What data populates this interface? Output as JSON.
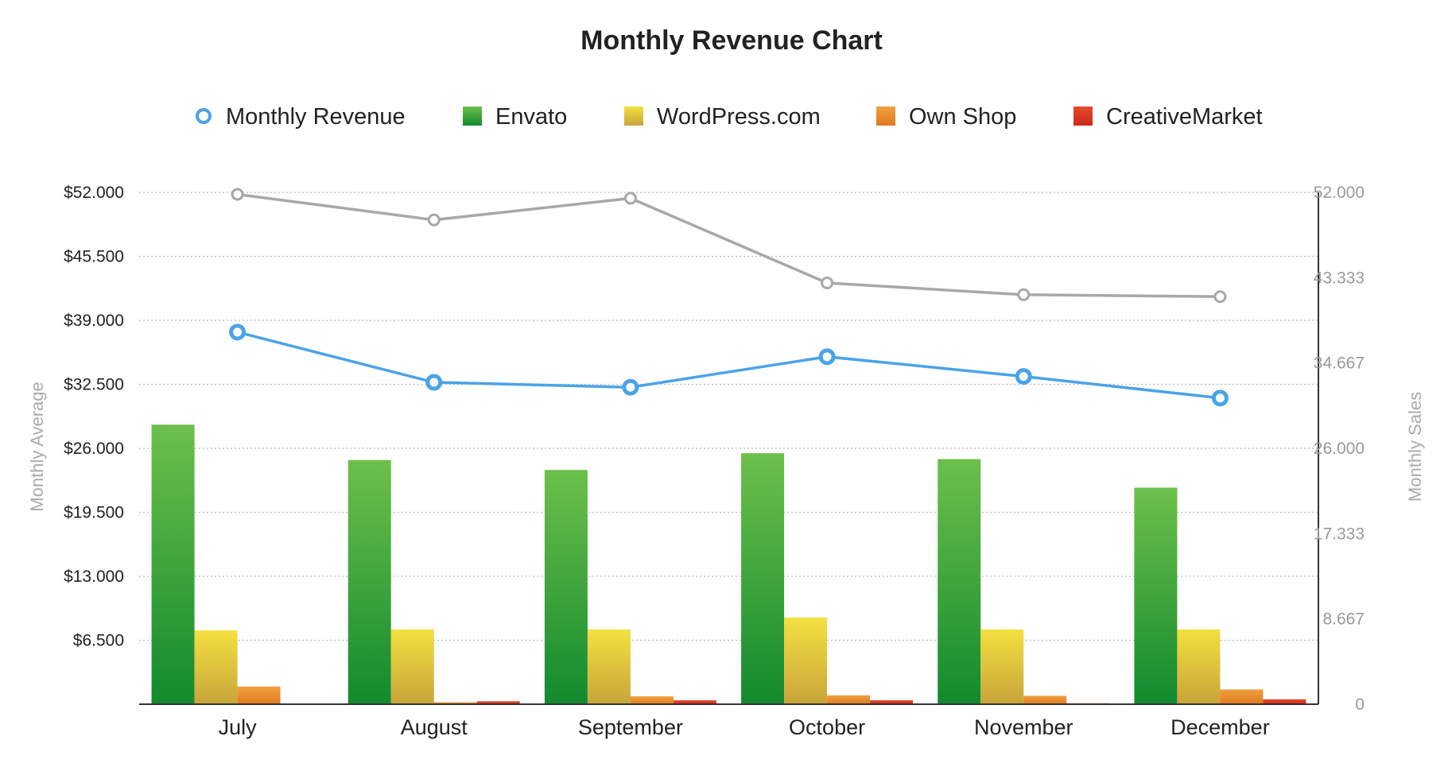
{
  "chart_data": {
    "type": "bar",
    "title": "Monthly Revenue Chart",
    "categories": [
      "July",
      "August",
      "September",
      "October",
      "November",
      "December"
    ],
    "ylabel": "Monthly Average",
    "ylabel_right": "Monthly Sales",
    "ylim": [
      0,
      52000
    ],
    "ylim_right": [
      0,
      52000
    ],
    "yticks_left": [
      "$6.500",
      "$13.000",
      "$19.500",
      "$26.000",
      "$32.500",
      "$39.000",
      "$45.500",
      "$52.000"
    ],
    "yticks_right": [
      "0",
      "8.667",
      "17.333",
      "26.000",
      "34.667",
      "43.333",
      "52.000"
    ],
    "grid": true,
    "legend_position": "top",
    "series": [
      {
        "name": "Monthly Revenue",
        "kind": "line",
        "axis": "left",
        "color": "#4aa3e8",
        "values": [
          37800,
          32700,
          32200,
          35300,
          33300,
          31100
        ]
      },
      {
        "name": "Envato",
        "kind": "bar",
        "axis": "left",
        "color": "#2ea03a",
        "color_top": "#6cc04a",
        "color_bottom": "#128a2e",
        "values": [
          28400,
          24800,
          23800,
          25500,
          24900,
          22000
        ]
      },
      {
        "name": "WordPress.com",
        "kind": "bar",
        "axis": "left",
        "color": "#e6c22e",
        "color_top": "#f4e040",
        "color_bottom": "#c8a43a",
        "values": [
          7500,
          7600,
          7600,
          8800,
          7600,
          7600
        ]
      },
      {
        "name": "Own Shop",
        "kind": "bar",
        "axis": "left",
        "color": "#e88a2e",
        "color_top": "#f0a040",
        "color_bottom": "#e07a20",
        "values": [
          1800,
          200,
          800,
          900,
          850,
          1500
        ]
      },
      {
        "name": "CreativeMarket",
        "kind": "bar",
        "axis": "left",
        "color": "#dd3a22",
        "color_top": "#e64a2a",
        "color_bottom": "#cc2a1a",
        "values": [
          0,
          300,
          400,
          400,
          100,
          500
        ]
      },
      {
        "name": "",
        "kind": "line",
        "axis": "right",
        "color": "#a8a8a8",
        "values": [
          51800,
          49200,
          51400,
          42800,
          41600,
          41400
        ]
      }
    ]
  }
}
